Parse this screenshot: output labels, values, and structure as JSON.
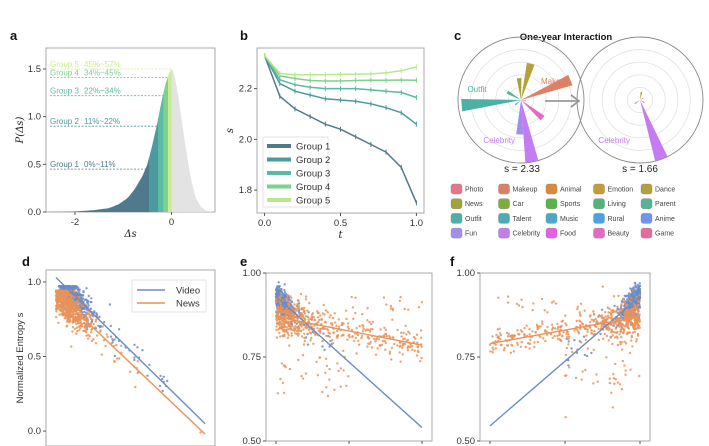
{
  "panels": {
    "a": {
      "label": "a"
    },
    "b": {
      "label": "b"
    },
    "c": {
      "label": "c",
      "title": "One-year Interaction",
      "s_before": "s = 2.33",
      "s_after": "s = 1.66"
    },
    "d": {
      "label": "d"
    },
    "e": {
      "label": "e"
    },
    "f": {
      "label": "f"
    }
  },
  "chart_data": [
    {
      "id": "a",
      "type": "area",
      "title": "",
      "xlabel": "Δs",
      "ylabel": "P(Δs)",
      "xlim": [
        -2.6,
        0.9
      ],
      "ylim": [
        0,
        1.72
      ],
      "xticks": [
        {
          "v": -2,
          "label": "-2"
        },
        {
          "v": 0,
          "label": "0"
        }
      ],
      "yticks": [
        {
          "v": 0,
          "label": "0.0"
        },
        {
          "v": 0.5,
          "label": "0.5"
        },
        {
          "v": 1.0,
          "label": "1.0"
        },
        {
          "v": 1.5,
          "label": "1.5"
        }
      ],
      "groups": [
        {
          "name": "Group 1",
          "range": "0%~11%",
          "level": 0.45,
          "color": "#4f7a8c",
          "x0": -2.6,
          "x1": -0.45
        },
        {
          "name": "Group 2",
          "range": "11%~22%",
          "level": 0.9,
          "color": "#4a9aa0",
          "x0": -0.45,
          "x1": -0.28
        },
        {
          "name": "Group 3",
          "range": "22%~34%",
          "level": 1.22,
          "color": "#5bb9a4",
          "x0": -0.28,
          "x1": -0.16
        },
        {
          "name": "Group 4",
          "range": "34%~45%",
          "level": 1.41,
          "color": "#7fd08e",
          "x0": -0.16,
          "x1": -0.07
        },
        {
          "name": "Group 5",
          "range": "45%~57%",
          "level": 1.5,
          "color": "#c9ec8b",
          "x0": -0.07,
          "x1": 0.0
        }
      ],
      "rest_color": "#e3e3e3",
      "density": [
        [
          -2.6,
          0.0
        ],
        [
          -2.0,
          0.005
        ],
        [
          -1.6,
          0.02
        ],
        [
          -1.3,
          0.04
        ],
        [
          -1.1,
          0.08
        ],
        [
          -0.9,
          0.15
        ],
        [
          -0.75,
          0.25
        ],
        [
          -0.6,
          0.38
        ],
        [
          -0.5,
          0.5
        ],
        [
          -0.4,
          0.7
        ],
        [
          -0.3,
          0.92
        ],
        [
          -0.2,
          1.18
        ],
        [
          -0.12,
          1.35
        ],
        [
          -0.05,
          1.45
        ],
        [
          0.0,
          1.5
        ],
        [
          0.05,
          1.45
        ],
        [
          0.12,
          1.28
        ],
        [
          0.2,
          1.0
        ],
        [
          0.3,
          0.65
        ],
        [
          0.4,
          0.35
        ],
        [
          0.5,
          0.15
        ],
        [
          0.6,
          0.06
        ],
        [
          0.7,
          0.02
        ],
        [
          0.85,
          0.0
        ]
      ]
    },
    {
      "id": "b",
      "type": "line",
      "xlabel": "t",
      "ylabel": "s",
      "xlim": [
        -0.05,
        1.05
      ],
      "ylim": [
        1.71,
        2.36
      ],
      "xticks": [
        {
          "v": 0,
          "label": "0.0"
        },
        {
          "v": 0.5,
          "label": "0.5"
        },
        {
          "v": 1.0,
          "label": "1.0"
        }
      ],
      "yticks": [
        {
          "v": 1.8,
          "label": "1.8"
        },
        {
          "v": 2.0,
          "label": "2.0"
        },
        {
          "v": 2.2,
          "label": "2.2"
        }
      ],
      "x": [
        0,
        0.1,
        0.2,
        0.3,
        0.4,
        0.5,
        0.6,
        0.7,
        0.8,
        0.9,
        1.0
      ],
      "legend": "lower-left",
      "series": [
        {
          "name": "Group 1",
          "color": "#4f7a8c",
          "values": [
            2.33,
            2.17,
            2.12,
            2.09,
            2.06,
            2.04,
            2.01,
            1.98,
            1.95,
            1.89,
            1.75
          ]
        },
        {
          "name": "Group 2",
          "color": "#4a9aa0",
          "values": [
            2.33,
            2.22,
            2.19,
            2.175,
            2.16,
            2.155,
            2.15,
            2.14,
            2.125,
            2.105,
            2.06
          ]
        },
        {
          "name": "Group 3",
          "color": "#5bb9a4",
          "values": [
            2.33,
            2.235,
            2.215,
            2.205,
            2.2,
            2.2,
            2.2,
            2.195,
            2.19,
            2.185,
            2.165
          ]
        },
        {
          "name": "Group 4",
          "color": "#7fd08e",
          "values": [
            2.33,
            2.25,
            2.24,
            2.232,
            2.23,
            2.23,
            2.232,
            2.233,
            2.233,
            2.234,
            2.233
          ]
        },
        {
          "name": "Group 5",
          "color": "#b9e88a",
          "values": [
            2.33,
            2.26,
            2.255,
            2.255,
            2.255,
            2.256,
            2.257,
            2.258,
            2.262,
            2.27,
            2.285
          ]
        }
      ]
    },
    {
      "id": "c",
      "type": "polar-bar",
      "title": "One-year Interaction",
      "rings": 5,
      "before": {
        "s": 2.33,
        "wedges": [
          {
            "cat": "Outfit",
            "angle": 265,
            "r": 0.95,
            "label": true
          },
          {
            "cat": "Makeup",
            "angle": 68,
            "r": 0.85,
            "label": true
          },
          {
            "cat": "Celebrity",
            "angle": 170,
            "r": 1.0,
            "label": true
          },
          {
            "cat": "Dance",
            "angle": 15,
            "r": 0.6
          },
          {
            "cat": "News",
            "angle": 355,
            "r": 0.35
          },
          {
            "cat": "Fun",
            "angle": 182,
            "r": 0.55
          },
          {
            "cat": "Beauty",
            "angle": 130,
            "r": 0.45
          },
          {
            "cat": "Parent",
            "angle": 300,
            "r": 0.25
          },
          {
            "cat": "Anime",
            "angle": 230,
            "r": 0.12
          },
          {
            "cat": "Photo",
            "angle": 100,
            "r": 0.08
          }
        ]
      },
      "after": {
        "s": 1.66,
        "wedges": [
          {
            "cat": "Celebrity",
            "angle": 160,
            "r": 1.0,
            "label": true
          },
          {
            "cat": "Dance",
            "angle": 10,
            "r": 0.13
          },
          {
            "cat": "Anime",
            "angle": 235,
            "r": 0.1
          },
          {
            "cat": "Beauty",
            "angle": 120,
            "r": 0.08
          },
          {
            "cat": "Photo",
            "angle": 60,
            "r": 0.06
          }
        ]
      },
      "legend": [
        {
          "name": "Photo",
          "color": "#e8748a"
        },
        {
          "name": "Makeup",
          "color": "#dc8066"
        },
        {
          "name": "Animal",
          "color": "#dc8a3a"
        },
        {
          "name": "Emotion",
          "color": "#c79a3a"
        },
        {
          "name": "Dance",
          "color": "#b5a03a"
        },
        {
          "name": "News",
          "color": "#a3a33a"
        },
        {
          "name": "Car",
          "color": "#80ad3a"
        },
        {
          "name": "Sports",
          "color": "#58b548"
        },
        {
          "name": "Living",
          "color": "#4fb37a"
        },
        {
          "name": "Parent",
          "color": "#4db59a"
        },
        {
          "name": "Outfit",
          "color": "#4cb0a5"
        },
        {
          "name": "Talent",
          "color": "#4aadb5"
        },
        {
          "name": "Music",
          "color": "#4aa8c8"
        },
        {
          "name": "Rural",
          "color": "#4aa2e0"
        },
        {
          "name": "Anime",
          "color": "#6e96ef"
        },
        {
          "name": "Fun",
          "color": "#a38ef0"
        },
        {
          "name": "Celebrity",
          "color": "#c47cf0"
        },
        {
          "name": "Food",
          "color": "#e85ee8"
        },
        {
          "name": "Beauty",
          "color": "#e868c8"
        },
        {
          "name": "Game",
          "color": "#e868a0"
        }
      ]
    },
    {
      "id": "d",
      "type": "scatter",
      "ylabel": "Normalized Entropy s",
      "ylim": [
        -0.1,
        1.08
      ],
      "yticks": [
        {
          "v": 0,
          "label": "0.0"
        },
        {
          "v": 0.5,
          "label": "0.5"
        },
        {
          "v": 1.0,
          "label": "1.0"
        }
      ],
      "legend": "top-right",
      "series": [
        {
          "name": "Video",
          "color": "#6a8cc8",
          "fit": [
            [
              0.0,
              1.03
            ],
            [
              1.0,
              0.05
            ]
          ]
        },
        {
          "name": "News",
          "color": "#e8935a",
          "fit": [
            [
              0.0,
              0.93
            ],
            [
              1.0,
              -0.02
            ]
          ]
        }
      ]
    },
    {
      "id": "e",
      "type": "scatter",
      "ylim": [
        0.5,
        1.0
      ],
      "yticks": [
        {
          "v": 0.5,
          "label": "0.50"
        },
        {
          "v": 0.75,
          "label": "0.75"
        },
        {
          "v": 1.0,
          "label": "1.00"
        }
      ],
      "series": [
        {
          "name": "Video",
          "color": "#6a8cc8",
          "fit": [
            [
              0.0,
              0.93
            ],
            [
              1.0,
              0.54
            ]
          ]
        },
        {
          "name": "News",
          "color": "#e8935a",
          "fit": [
            [
              0.0,
              0.87
            ],
            [
              1.0,
              0.785
            ]
          ]
        }
      ]
    },
    {
      "id": "f",
      "type": "scatter",
      "ylim": [
        0.5,
        1.0
      ],
      "yticks": [
        {
          "v": 0.5,
          "label": "0.50"
        },
        {
          "v": 0.75,
          "label": "0.75"
        },
        {
          "v": 1.0,
          "label": "1.00"
        }
      ],
      "series": [
        {
          "name": "Video",
          "color": "#6a8cc8",
          "fit": [
            [
              0.0,
              0.545
            ],
            [
              1.0,
              0.93
            ]
          ]
        },
        {
          "name": "News",
          "color": "#e8935a",
          "fit": [
            [
              0.0,
              0.79
            ],
            [
              1.0,
              0.87
            ]
          ]
        }
      ]
    }
  ]
}
